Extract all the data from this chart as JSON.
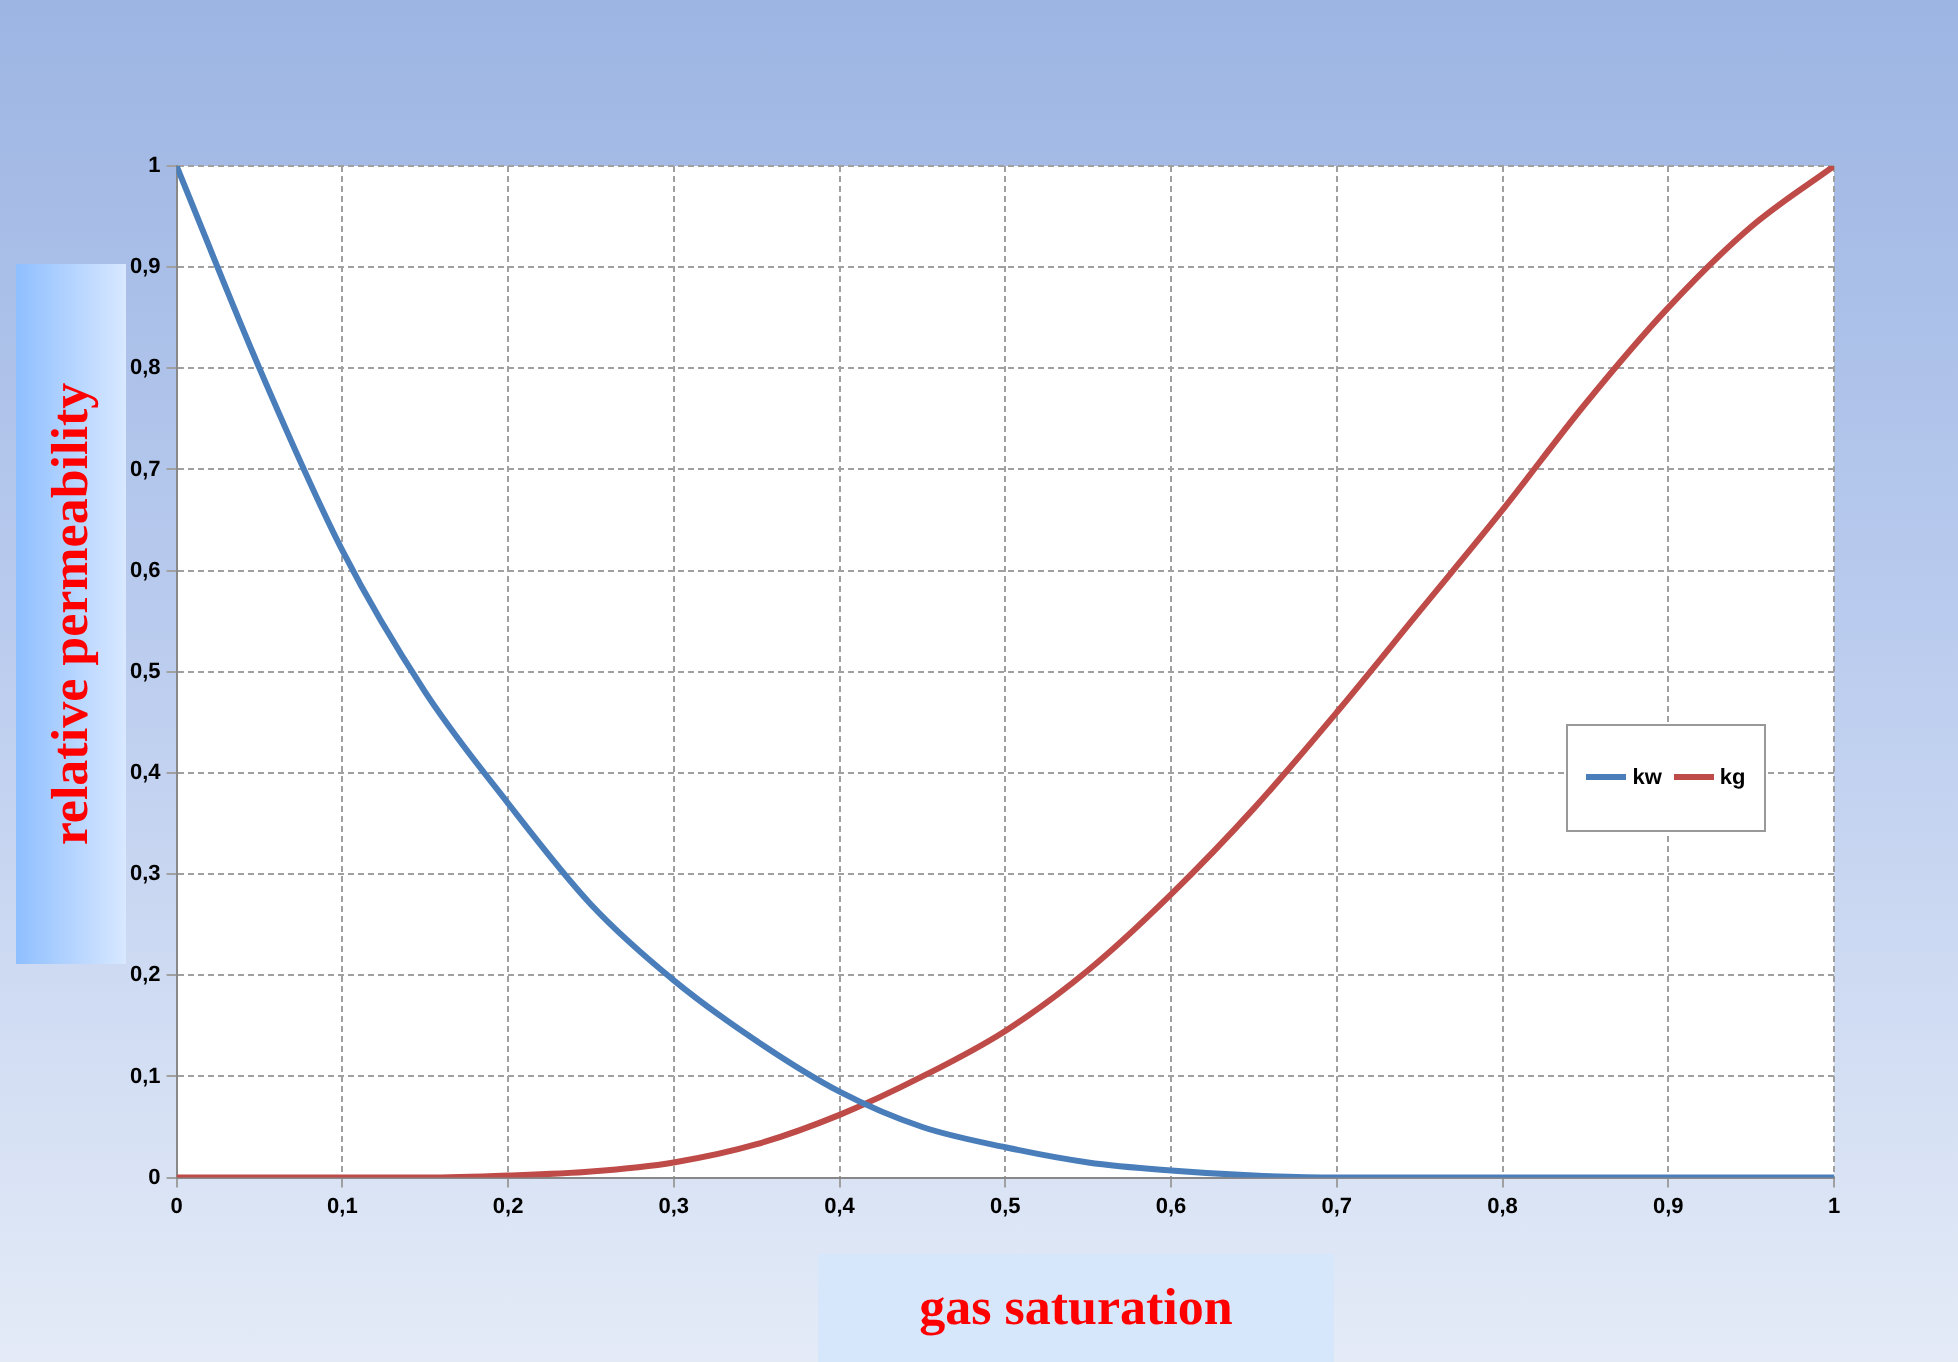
{
  "chart_data": {
    "type": "line",
    "xlabel": "gas saturation",
    "ylabel": "relative permeability",
    "x": [
      0,
      0.05,
      0.1,
      0.15,
      0.2,
      0.25,
      0.3,
      0.35,
      0.4,
      0.45,
      0.5,
      0.55,
      0.6,
      0.65,
      0.7,
      0.75,
      0.8,
      0.85,
      0.9,
      0.95,
      1
    ],
    "series": [
      {
        "name": "kw",
        "color": "#4a7ebb",
        "values": [
          1,
          0.8,
          0.62,
          0.48,
          0.37,
          0.27,
          0.195,
          0.135,
          0.085,
          0.05,
          0.03,
          0.015,
          0.007,
          0.002,
          0,
          0,
          0,
          0,
          0,
          0,
          0
        ]
      },
      {
        "name": "kg",
        "color": "#be4b48",
        "values": [
          0,
          0,
          0,
          0,
          0.002,
          0.006,
          0.015,
          0.033,
          0.062,
          0.1,
          0.145,
          0.205,
          0.28,
          0.365,
          0.46,
          0.56,
          0.66,
          0.765,
          0.86,
          0.94,
          1
        ]
      }
    ],
    "xlim": [
      0,
      1
    ],
    "ylim": [
      0,
      1
    ],
    "xticks": [
      0,
      {
        "value": 0.1,
        "label": "0,1"
      },
      {
        "value": 0.2,
        "label": "0,2"
      },
      {
        "value": 0.3,
        "label": "0,3"
      },
      {
        "value": 0.4,
        "label": "0,4"
      },
      {
        "value": 0.5,
        "label": "0,5"
      },
      {
        "value": 0.6,
        "label": "0,6"
      },
      {
        "value": 0.7,
        "label": "0,7"
      },
      {
        "value": 0.8,
        "label": "0,8"
      },
      {
        "value": 0.9,
        "label": "0,9"
      },
      1
    ],
    "yticks": [
      0,
      {
        "value": 0.1,
        "label": "0,1"
      },
      {
        "value": 0.2,
        "label": "0,2"
      },
      {
        "value": 0.3,
        "label": "0,3"
      },
      {
        "value": 0.4,
        "label": "0,4"
      },
      {
        "value": 0.5,
        "label": "0,5"
      },
      {
        "value": 0.6,
        "label": "0,6"
      },
      {
        "value": 0.7,
        "label": "0,7"
      },
      {
        "value": 0.8,
        "label": "0,8"
      },
      {
        "value": 0.9,
        "label": "0,9"
      },
      1
    ],
    "grid": true,
    "legend": "right",
    "marker": "none",
    "line_style": "solid"
  }
}
